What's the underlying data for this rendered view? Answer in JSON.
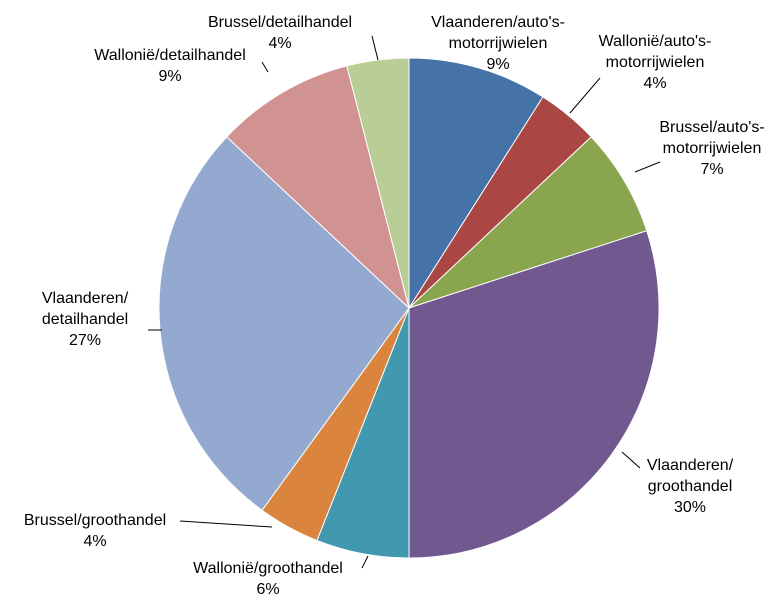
{
  "chart_data": {
    "type": "pie",
    "categories": [
      "Vlaanderen/auto's-\nmotorrijwielen",
      "Wallonië/auto's-\nmotorrijwielen",
      "Brussel/auto's-\nmotorrijwielen",
      "Vlaanderen/\ngroothandel",
      "Wallonië/groothandel",
      "Brussel/groothandel",
      "Vlaanderen/\ndetailhandel",
      "Wallonië/detailhandel",
      "Brussel/detailhandel"
    ],
    "values": [
      9,
      4,
      7,
      30,
      6,
      4,
      27,
      9,
      4
    ],
    "value_labels": [
      "9%",
      "4%",
      "7%",
      "30%",
      "6%",
      "4%",
      "27%",
      "9%",
      "4%"
    ],
    "colors": [
      "#4572a7",
      "#aa4643",
      "#89a54e",
      "#71588f",
      "#4198af",
      "#db843d",
      "#93a9cf",
      "#d19392",
      "#b9cd96"
    ]
  }
}
